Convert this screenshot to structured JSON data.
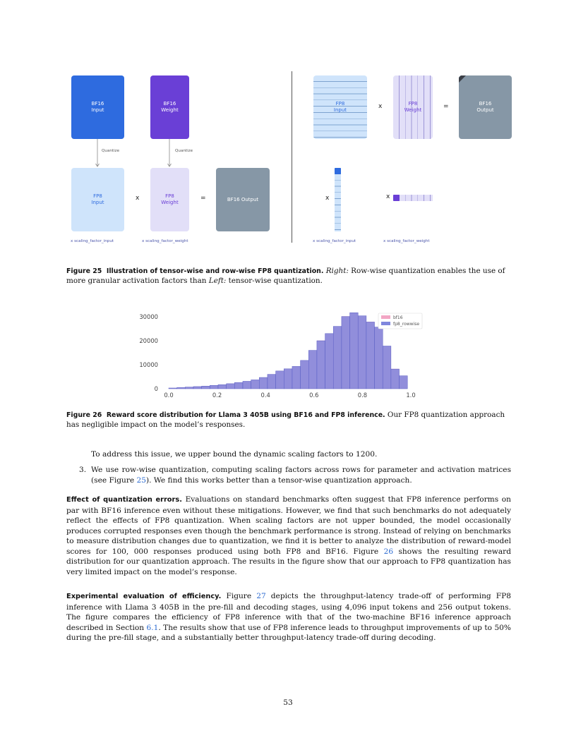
{
  "fig25": {
    "left": {
      "bf16_input": "BF16\nInput",
      "bf16_weight": "BF16\nWeight",
      "quantize1": "Quantize",
      "quantize2": "Quantize",
      "fp8_input": "FP8\nInput",
      "times": "x",
      "fp8_weight": "FP8\nWeight",
      "equals": "=",
      "output": "BF16 Output",
      "scale_input": "x scaling_factor_input",
      "scale_weight": "x scaling_factor_weight"
    },
    "right": {
      "fp8_input": "FP8\nInput",
      "times": "x",
      "fp8_weight": "FP8\nWeight",
      "equals": "=",
      "output": "BF16\nOutput",
      "times_input": "x",
      "times_weight": "x",
      "scale_input": "x scaling_factor_input",
      "scale_weight": "x scaling_factor_weight"
    },
    "caption_label": "Figure 25",
    "caption_title": "Illustration of tensor-wise and row-wise FP8 quantization.",
    "caption_right": "Right:",
    "caption_mid": " Row-wise quantization enables the use of more granular activation factors than ",
    "caption_left": "Left:",
    "caption_end": " tensor-wise quantization."
  },
  "fig26": {
    "caption_label": "Figure 26",
    "caption_title": "Reward score distribution for Llama 3 405B using BF16 and FP8 inference.",
    "caption_text": " Our FP8 quantization approach has negligible impact on the model’s responses."
  },
  "chart_data": {
    "type": "bar",
    "title": "",
    "xlabel": "",
    "ylabel": "",
    "xlim": [
      0.0,
      1.0
    ],
    "ylim": [
      0,
      33500
    ],
    "xticks": [
      "0.0",
      "0.2",
      "0.4",
      "0.6",
      "0.8",
      "1.0"
    ],
    "yticks": [
      "0",
      "10000",
      "20000",
      "30000"
    ],
    "legend_position": "top-right",
    "bin_edges": [
      0.0,
      0.034,
      0.068,
      0.102,
      0.136,
      0.17,
      0.204,
      0.238,
      0.272,
      0.306,
      0.34,
      0.374,
      0.408,
      0.442,
      0.476,
      0.51,
      0.544,
      0.578,
      0.612,
      0.646,
      0.68,
      0.714,
      0.748,
      0.782,
      0.816,
      0.85,
      0.884,
      0.918,
      0.952,
      0.986
    ],
    "series": [
      {
        "name": "bf16",
        "color": "#f2a6c4",
        "values": [
          300,
          500,
          700,
          900,
          1100,
          1400,
          1700,
          2100,
          2600,
          3100,
          3700,
          4700,
          6000,
          7400,
          8300,
          9300,
          11800,
          16000,
          20100,
          23000,
          26000,
          30200,
          31700,
          30400,
          27900,
          25700,
          17800,
          8300,
          5400
        ]
      },
      {
        "name": "fp8_rowwise",
        "color": "#7f86dd",
        "values": [
          300,
          500,
          700,
          900,
          1100,
          1400,
          1700,
          2100,
          2600,
          3100,
          3700,
          4700,
          6000,
          7400,
          8300,
          9300,
          11800,
          16000,
          20000,
          23000,
          26000,
          30100,
          31700,
          30400,
          27800,
          25700,
          17800,
          8200,
          5400
        ]
      }
    ]
  },
  "body": {
    "p1": "To address this issue, we upper bound the dynamic scaling factors to 1200.",
    "item3_num": "3.",
    "item3_a": "We use row-wise quantization, computing scaling factors across rows for parameter and activation matrices (see Figure ",
    "item3_ref": "25",
    "item3_b": "). We find this works better than a tensor-wise quantization approach.",
    "p2_head": "Effect of quantization errors.",
    "p2_a": " Evaluations on standard benchmarks often suggest that FP8 inference performs on par with BF16 inference even without these mitigations. However, we find that such benchmarks do not adequately reflect the effects of FP8 quantization. When scaling factors are not upper bounded, the model occasionally produces corrupted responses even though the benchmark performance is strong. Instead of relying on benchmarks to measure distribution changes due to quantization, we find it is better to analyze the distribution of reward-model scores for 100, 000 responses produced using both FP8 and BF16. Figure ",
    "p2_ref": "26",
    "p2_b": " shows the resulting reward distribution for our quantization approach. The results in the figure show that our approach to FP8 quantization has very limited impact on the model’s response.",
    "p3_head": "Experimental evaluation of efficiency.",
    "p3_a": " Figure ",
    "p3_ref1": "27",
    "p3_b": " depicts the throughput-latency trade-off of performing FP8 inference with Llama 3 405B in the pre-fill and decoding stages, using 4,096 input tokens and 256 output tokens. The figure compares the efficiency of FP8 inference with that of the two-machine BF16 inference approach described in Section ",
    "p3_ref2": "6.1",
    "p3_c": ". The results show that use of FP8 inference leads to throughput improvements of up to 50% during the pre-fill stage, and a substantially better throughput-latency trade-off during decoding."
  },
  "page_number": "53",
  "colors": {
    "bf16_input": "#2e6bdf",
    "bf16_weight": "#6a3fd6",
    "fp8_input_bg": "#cfe4fb",
    "fp8_weight_bg": "#e2dff8",
    "output": "#8697a6",
    "ref": "#2c6bd1"
  }
}
